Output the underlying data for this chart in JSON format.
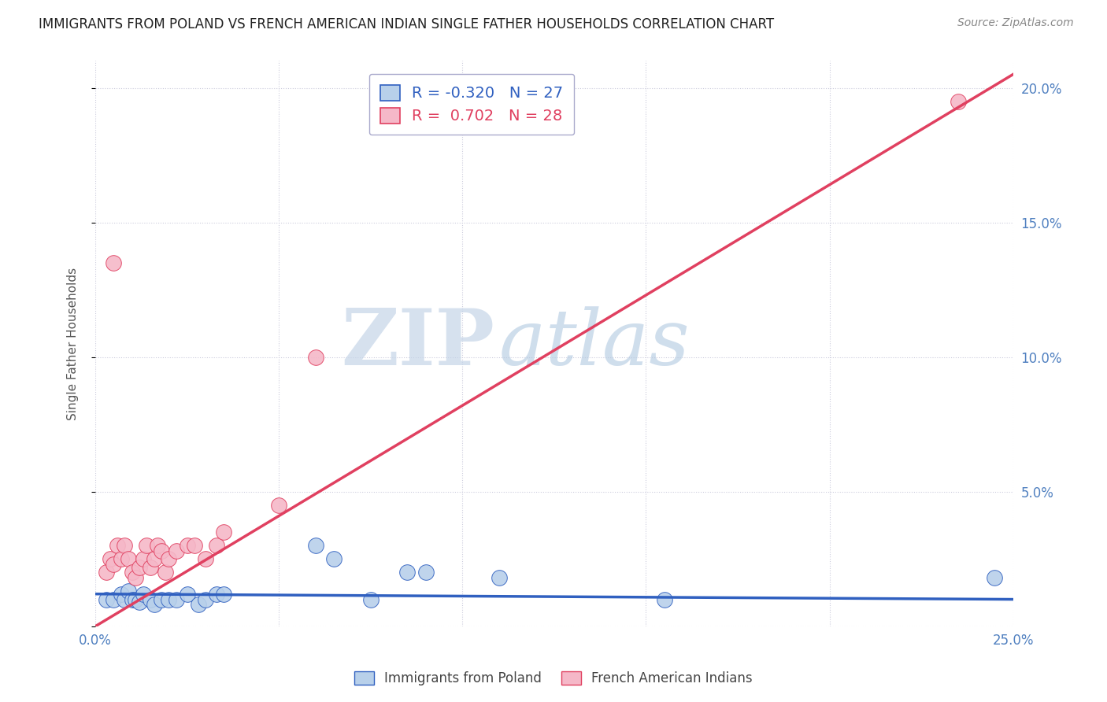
{
  "title": "IMMIGRANTS FROM POLAND VS FRENCH AMERICAN INDIAN SINGLE FATHER HOUSEHOLDS CORRELATION CHART",
  "source": "Source: ZipAtlas.com",
  "ylabel": "Single Father Households",
  "xlim": [
    0.0,
    0.25
  ],
  "ylim": [
    0.0,
    0.21
  ],
  "xticks": [
    0.0,
    0.05,
    0.1,
    0.15,
    0.2,
    0.25
  ],
  "yticks": [
    0.0,
    0.05,
    0.1,
    0.15,
    0.2
  ],
  "xticklabels": [
    "0.0%",
    "",
    "",
    "",
    "",
    "25.0%"
  ],
  "yticklabels_right": [
    "",
    "5.0%",
    "10.0%",
    "15.0%",
    "20.0%"
  ],
  "blue_R": -0.32,
  "blue_N": 27,
  "pink_R": 0.702,
  "pink_N": 28,
  "blue_color": "#b8d0ea",
  "pink_color": "#f5b8c8",
  "blue_line_color": "#3060c0",
  "pink_line_color": "#e04060",
  "watermark_zip": "ZIP",
  "watermark_atlas": "atlas",
  "blue_scatter_x": [
    0.003,
    0.005,
    0.007,
    0.008,
    0.009,
    0.01,
    0.011,
    0.012,
    0.013,
    0.015,
    0.016,
    0.018,
    0.02,
    0.022,
    0.025,
    0.028,
    0.03,
    0.033,
    0.035,
    0.06,
    0.065,
    0.075,
    0.085,
    0.09,
    0.11,
    0.155,
    0.245
  ],
  "blue_scatter_y": [
    0.01,
    0.01,
    0.012,
    0.01,
    0.013,
    0.01,
    0.01,
    0.009,
    0.012,
    0.01,
    0.008,
    0.01,
    0.01,
    0.01,
    0.012,
    0.008,
    0.01,
    0.012,
    0.012,
    0.03,
    0.025,
    0.01,
    0.02,
    0.02,
    0.018,
    0.01,
    0.018
  ],
  "pink_scatter_x": [
    0.003,
    0.004,
    0.005,
    0.006,
    0.007,
    0.008,
    0.009,
    0.01,
    0.011,
    0.012,
    0.013,
    0.014,
    0.015,
    0.016,
    0.017,
    0.018,
    0.019,
    0.02,
    0.022,
    0.025,
    0.027,
    0.03,
    0.033,
    0.035,
    0.05,
    0.06,
    0.005,
    0.235
  ],
  "pink_scatter_y": [
    0.02,
    0.025,
    0.023,
    0.03,
    0.025,
    0.03,
    0.025,
    0.02,
    0.018,
    0.022,
    0.025,
    0.03,
    0.022,
    0.025,
    0.03,
    0.028,
    0.02,
    0.025,
    0.028,
    0.03,
    0.03,
    0.025,
    0.03,
    0.035,
    0.045,
    0.1,
    0.135,
    0.195
  ],
  "background_color": "#ffffff",
  "grid_color": "#ccccdd",
  "title_fontsize": 12,
  "tick_color": "#5080c0",
  "legend_box_color_blue": "#b8d0ea",
  "legend_box_color_pink": "#f5b8c8",
  "blue_trend_start_y": 0.012,
  "blue_trend_end_y": 0.01,
  "pink_trend_start_y": 0.0,
  "pink_trend_end_y": 0.205
}
